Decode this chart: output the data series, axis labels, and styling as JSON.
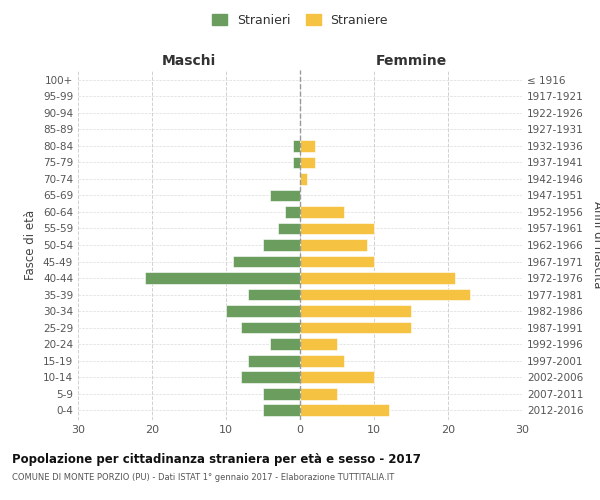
{
  "age_groups": [
    "100+",
    "95-99",
    "90-94",
    "85-89",
    "80-84",
    "75-79",
    "70-74",
    "65-69",
    "60-64",
    "55-59",
    "50-54",
    "45-49",
    "40-44",
    "35-39",
    "30-34",
    "25-29",
    "20-24",
    "15-19",
    "10-14",
    "5-9",
    "0-4"
  ],
  "birth_years": [
    "≤ 1916",
    "1917-1921",
    "1922-1926",
    "1927-1931",
    "1932-1936",
    "1937-1941",
    "1942-1946",
    "1947-1951",
    "1952-1956",
    "1957-1961",
    "1962-1966",
    "1967-1971",
    "1972-1976",
    "1977-1981",
    "1982-1986",
    "1987-1991",
    "1992-1996",
    "1997-2001",
    "2002-2006",
    "2007-2011",
    "2012-2016"
  ],
  "maschi": [
    0,
    0,
    0,
    0,
    1,
    1,
    0,
    4,
    2,
    3,
    5,
    9,
    21,
    7,
    10,
    8,
    4,
    7,
    8,
    5,
    5
  ],
  "femmine": [
    0,
    0,
    0,
    0,
    2,
    2,
    1,
    0,
    6,
    10,
    9,
    10,
    21,
    23,
    15,
    15,
    5,
    6,
    10,
    5,
    12
  ],
  "maschi_color": "#6b9e5e",
  "femmine_color": "#f5c242",
  "title": "Popolazione per cittadinanza straniera per età e sesso - 2017",
  "subtitle": "COMUNE DI MONTE PORZIO (PU) - Dati ISTAT 1° gennaio 2017 - Elaborazione TUTTITALIA.IT",
  "ylabel_left": "Fasce di età",
  "ylabel_right": "Anni di nascita",
  "xlabel_maschi": "Maschi",
  "xlabel_femmine": "Femmine",
  "legend_maschi": "Stranieri",
  "legend_femmine": "Straniere",
  "xlim": 30,
  "background_color": "#ffffff",
  "grid_color": "#cccccc"
}
